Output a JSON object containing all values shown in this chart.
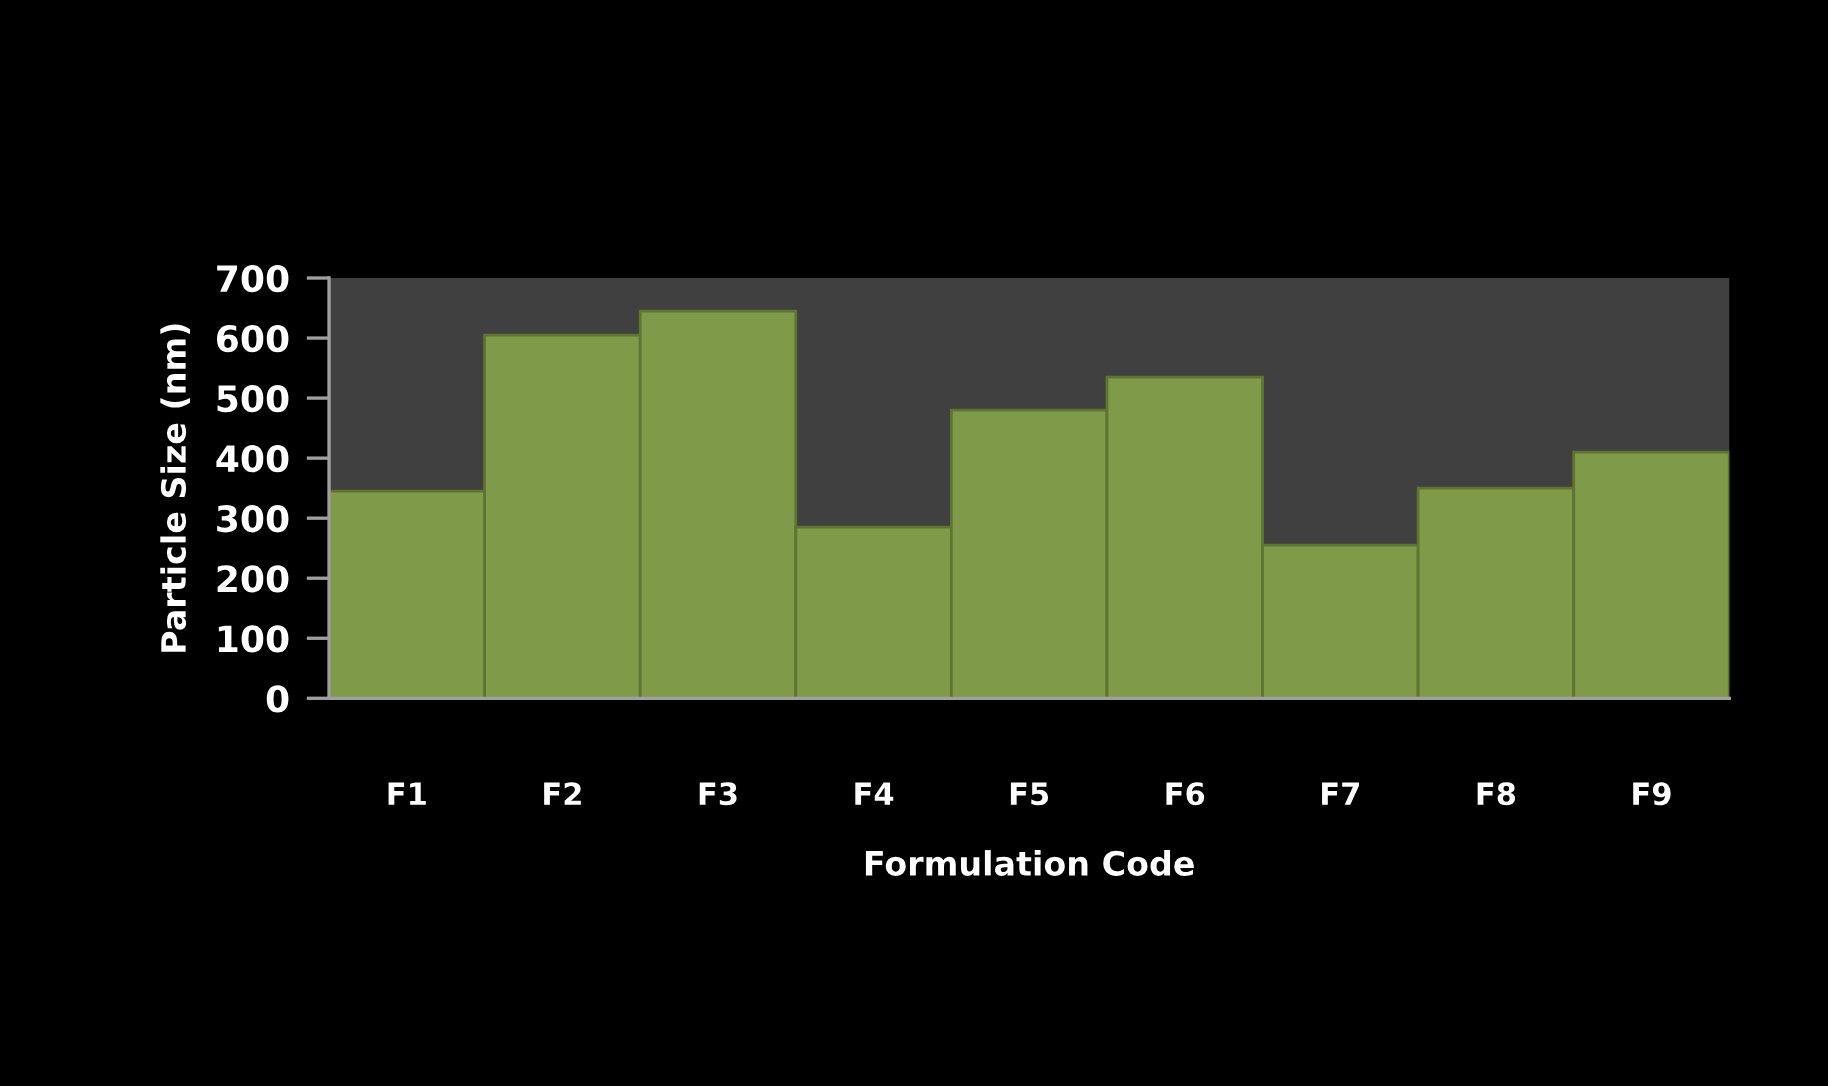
{
  "chart_data": {
    "type": "bar",
    "xlabel": "Formulation Code",
    "ylabel": "Particle Size (nm)",
    "categories": [
      "F1",
      "F2",
      "F3",
      "F4",
      "F5",
      "F6",
      "F7",
      "F8",
      "F9"
    ],
    "values": [
      345,
      605,
      645,
      285,
      480,
      535,
      255,
      350,
      410
    ],
    "color": "#7f9a48",
    "ylim": [
      0,
      700
    ],
    "yticks": [
      0,
      100,
      200,
      300,
      400,
      500,
      600,
      700
    ],
    "grid": false,
    "legend": false
  }
}
